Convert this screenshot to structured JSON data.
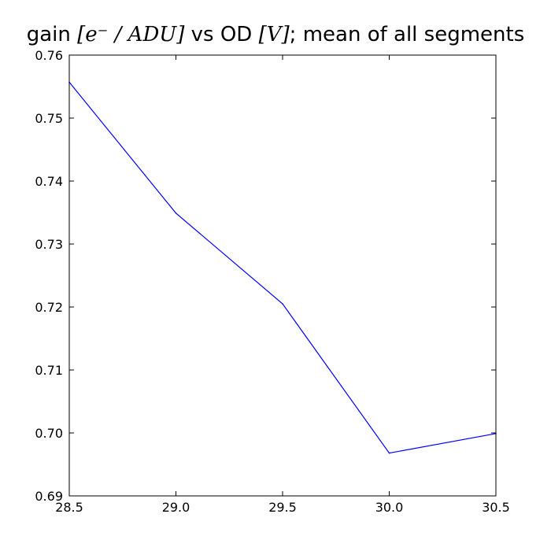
{
  "chart_data": {
    "type": "line",
    "title": {
      "prefix": "gain ",
      "math1": "[e⁻ / ADU]",
      "middle": " vs OD ",
      "math2": "[V]",
      "suffix": "; mean of all segments"
    },
    "xlabel": "",
    "ylabel": "",
    "xlim": [
      28.5,
      30.5
    ],
    "ylim": [
      0.69,
      0.76
    ],
    "xticks": [
      28.5,
      29.0,
      29.5,
      30.0,
      30.5
    ],
    "xtick_labels": [
      "28.5",
      "29.0",
      "29.5",
      "30.0",
      "30.5"
    ],
    "yticks": [
      0.69,
      0.7,
      0.71,
      0.72,
      0.73,
      0.74,
      0.75,
      0.76
    ],
    "ytick_labels": [
      "0.69",
      "0.70",
      "0.71",
      "0.72",
      "0.73",
      "0.74",
      "0.75",
      "0.76"
    ],
    "grid": false,
    "series": [
      {
        "x": [
          28.5,
          29.0,
          29.5,
          30.0,
          30.5
        ],
        "y": [
          0.7557,
          0.7349,
          0.7205,
          0.6968,
          0.6999
        ],
        "color": "#0000ff"
      }
    ]
  }
}
